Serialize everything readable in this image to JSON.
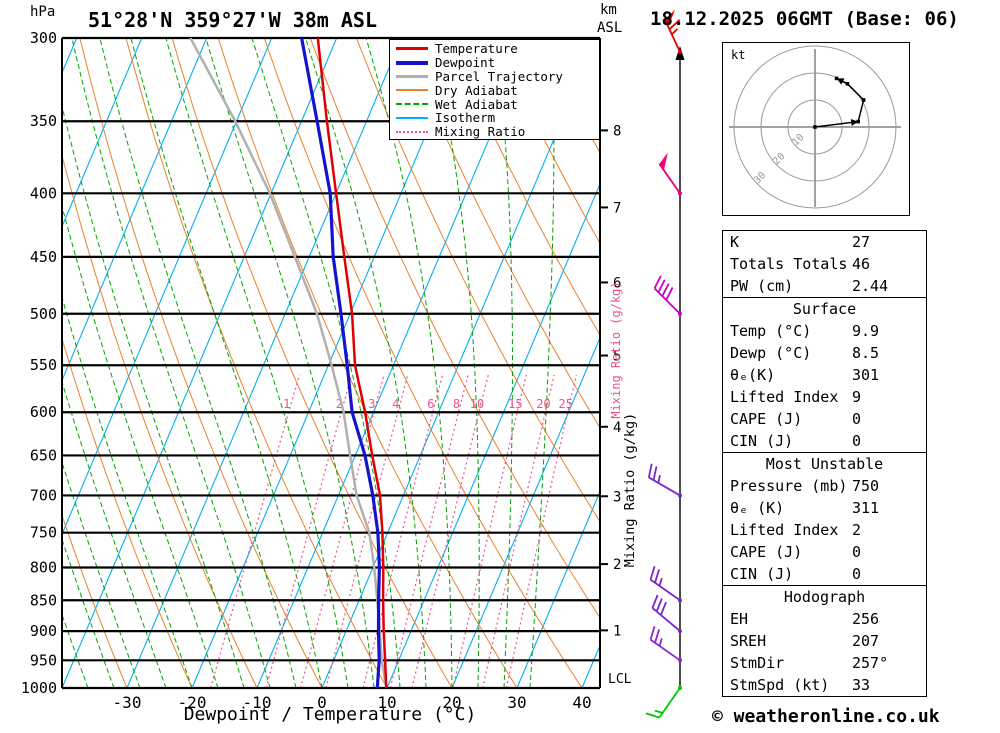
{
  "header": {
    "pressure_unit_label": "hPa",
    "station_title": "51°28'N 359°27'W 38m ASL",
    "altitude_axis_label_line1": "km",
    "altitude_axis_label_line2": "ASL",
    "datetime_title": "18.12.2025 06GMT (Base: 06)"
  },
  "axes": {
    "pressure_ticks_hpa": [
      300,
      350,
      400,
      450,
      500,
      550,
      600,
      650,
      700,
      750,
      800,
      850,
      900,
      950,
      1000
    ],
    "temperature_ticks_c": [
      -30,
      -20,
      -10,
      0,
      10,
      20,
      30,
      40
    ],
    "km_ticks": [
      1,
      2,
      3,
      4,
      5,
      6,
      7,
      8
    ],
    "lcl_label": "LCL",
    "x_axis_title": "Dewpoint / Temperature (°C)",
    "mixing_ratio_axis_label": "Mixing Ratio (g/kg)",
    "mixing_ratio_lines_gkg": [
      1,
      2,
      3,
      4,
      6,
      8,
      10,
      15,
      20,
      25
    ]
  },
  "style": {
    "isotherm_color": "#00b0f0",
    "dry_adiabat_color": "#e8822e",
    "wet_adiabat_color": "#00a400",
    "mixing_ratio_color": "#f05090",
    "pressure_line_color": "#000000"
  },
  "legend": {
    "items": [
      {
        "label": "Temperature",
        "color": "#e00000",
        "style": "solid",
        "thickness": 3
      },
      {
        "label": "Dewpoint",
        "color": "#1414cc",
        "style": "solid",
        "thickness": 4
      },
      {
        "label": "Parcel Trajectory",
        "color": "#b0b0b0",
        "style": "solid",
        "thickness": 3
      },
      {
        "label": "Dry Adiabat",
        "color": "#e8822e",
        "style": "solid",
        "thickness": 2
      },
      {
        "label": "Wet Adiabat",
        "color": "#00a400",
        "style": "dashed",
        "thickness": 2
      },
      {
        "label": "Isotherm",
        "color": "#00b0f0",
        "style": "solid",
        "thickness": 2
      },
      {
        "label": "Mixing Ratio",
        "color": "#f05090",
        "style": "dotted",
        "thickness": 2
      }
    ]
  },
  "chart_data": {
    "type": "skewt-log-p",
    "title": "51°28'N 359°27'W 38m ASL",
    "datetime": "18.12.2025 06GMT (Base: 06)",
    "pressure_axis_hpa": {
      "min": 300,
      "max": 1000,
      "scale": "log"
    },
    "temperature_axis_c": {
      "min": -40,
      "max": 42
    },
    "series": [
      {
        "name": "Temperature",
        "color": "#e00000",
        "points_p_t": [
          [
            1000,
            9.9
          ],
          [
            950,
            7.9
          ],
          [
            900,
            5.8
          ],
          [
            850,
            3.7
          ],
          [
            800,
            1.6
          ],
          [
            750,
            -0.8
          ],
          [
            700,
            -3.6
          ],
          [
            650,
            -7.4
          ],
          [
            600,
            -11.3
          ],
          [
            550,
            -15.9
          ],
          [
            500,
            -19.7
          ],
          [
            450,
            -24.6
          ],
          [
            400,
            -30.0
          ],
          [
            350,
            -36.1
          ],
          [
            300,
            -42.9
          ]
        ]
      },
      {
        "name": "Dewpoint",
        "color": "#1414cc",
        "points_p_t": [
          [
            1000,
            8.5
          ],
          [
            950,
            7.0
          ],
          [
            900,
            5.0
          ],
          [
            850,
            3.0
          ],
          [
            800,
            1.0
          ],
          [
            750,
            -1.5
          ],
          [
            700,
            -4.7
          ],
          [
            650,
            -8.5
          ],
          [
            600,
            -13.3
          ],
          [
            550,
            -17.1
          ],
          [
            500,
            -21.4
          ],
          [
            450,
            -26.3
          ],
          [
            400,
            -30.9
          ],
          [
            350,
            -37.6
          ],
          [
            300,
            -45.4
          ]
        ]
      },
      {
        "name": "Parcel Trajectory",
        "color": "#b0b0b0",
        "points_p_t": [
          [
            1000,
            9.9
          ],
          [
            950,
            7.4
          ],
          [
            900,
            5.2
          ],
          [
            850,
            2.8
          ],
          [
            800,
            0.2
          ],
          [
            750,
            -2.8
          ],
          [
            700,
            -7.2
          ],
          [
            650,
            -10.8
          ],
          [
            600,
            -14.6
          ],
          [
            550,
            -19.5
          ],
          [
            500,
            -25.1
          ],
          [
            450,
            -32.2
          ],
          [
            400,
            -40.2
          ],
          [
            350,
            -50.2
          ],
          [
            300,
            -62.5
          ]
        ]
      }
    ],
    "wind_barbs": [
      {
        "pressure": 300,
        "color": "#e60000",
        "speed_kt": 65,
        "angle_deg": 115
      },
      {
        "pressure": 400,
        "color": "#f00078",
        "speed_kt": 50,
        "angle_deg": 125
      },
      {
        "pressure": 500,
        "color": "#c800c8",
        "speed_kt": 40,
        "angle_deg": 135
      },
      {
        "pressure": 700,
        "color": "#7828c8",
        "speed_kt": 25,
        "angle_deg": 150
      },
      {
        "pressure": 850,
        "color": "#7828c8",
        "speed_kt": 25,
        "angle_deg": 145
      },
      {
        "pressure": 900,
        "color": "#7828c8",
        "speed_kt": 30,
        "angle_deg": 140
      },
      {
        "pressure": 950,
        "color": "#8c28d2",
        "speed_kt": 25,
        "angle_deg": 145
      },
      {
        "pressure": 1000,
        "color": "#00c800",
        "speed_kt": 15,
        "angle_deg": 235
      }
    ]
  },
  "hodograph": {
    "unit_label": "kt",
    "ring_radii_kt": [
      10,
      20,
      30
    ],
    "trace_uv_kt": [
      [
        0,
        0
      ],
      [
        16,
        2
      ],
      [
        18,
        10
      ],
      [
        12,
        16
      ],
      [
        8,
        18
      ]
    ]
  },
  "stats": {
    "sections": [
      {
        "title": "",
        "rows": [
          {
            "label": "K",
            "value": "27"
          },
          {
            "label": "Totals Totals",
            "value": "46"
          },
          {
            "label": "PW (cm)",
            "value": "2.44"
          }
        ]
      },
      {
        "title": "Surface",
        "rows": [
          {
            "label": "Temp (°C)",
            "value": "9.9"
          },
          {
            "label": "Dewp (°C)",
            "value": "8.5"
          },
          {
            "label": "θₑ(K)",
            "value": "301"
          },
          {
            "label": "Lifted Index",
            "value": "9"
          },
          {
            "label": "CAPE (J)",
            "value": "0"
          },
          {
            "label": "CIN (J)",
            "value": "0"
          }
        ]
      },
      {
        "title": "Most Unstable",
        "rows": [
          {
            "label": "Pressure (mb)",
            "value": "750"
          },
          {
            "label": "θₑ (K)",
            "value": "311"
          },
          {
            "label": "Lifted Index",
            "value": "2"
          },
          {
            "label": "CAPE (J)",
            "value": "0"
          },
          {
            "label": "CIN (J)",
            "value": "0"
          }
        ]
      },
      {
        "title": "Hodograph",
        "rows": [
          {
            "label": "EH",
            "value": "256"
          },
          {
            "label": "SREH",
            "value": "207"
          },
          {
            "label": "StmDir",
            "value": "257°"
          },
          {
            "label": "StmSpd (kt)",
            "value": "33"
          }
        ]
      }
    ]
  },
  "footer": {
    "copyright": "© weatheronline.co.uk"
  }
}
